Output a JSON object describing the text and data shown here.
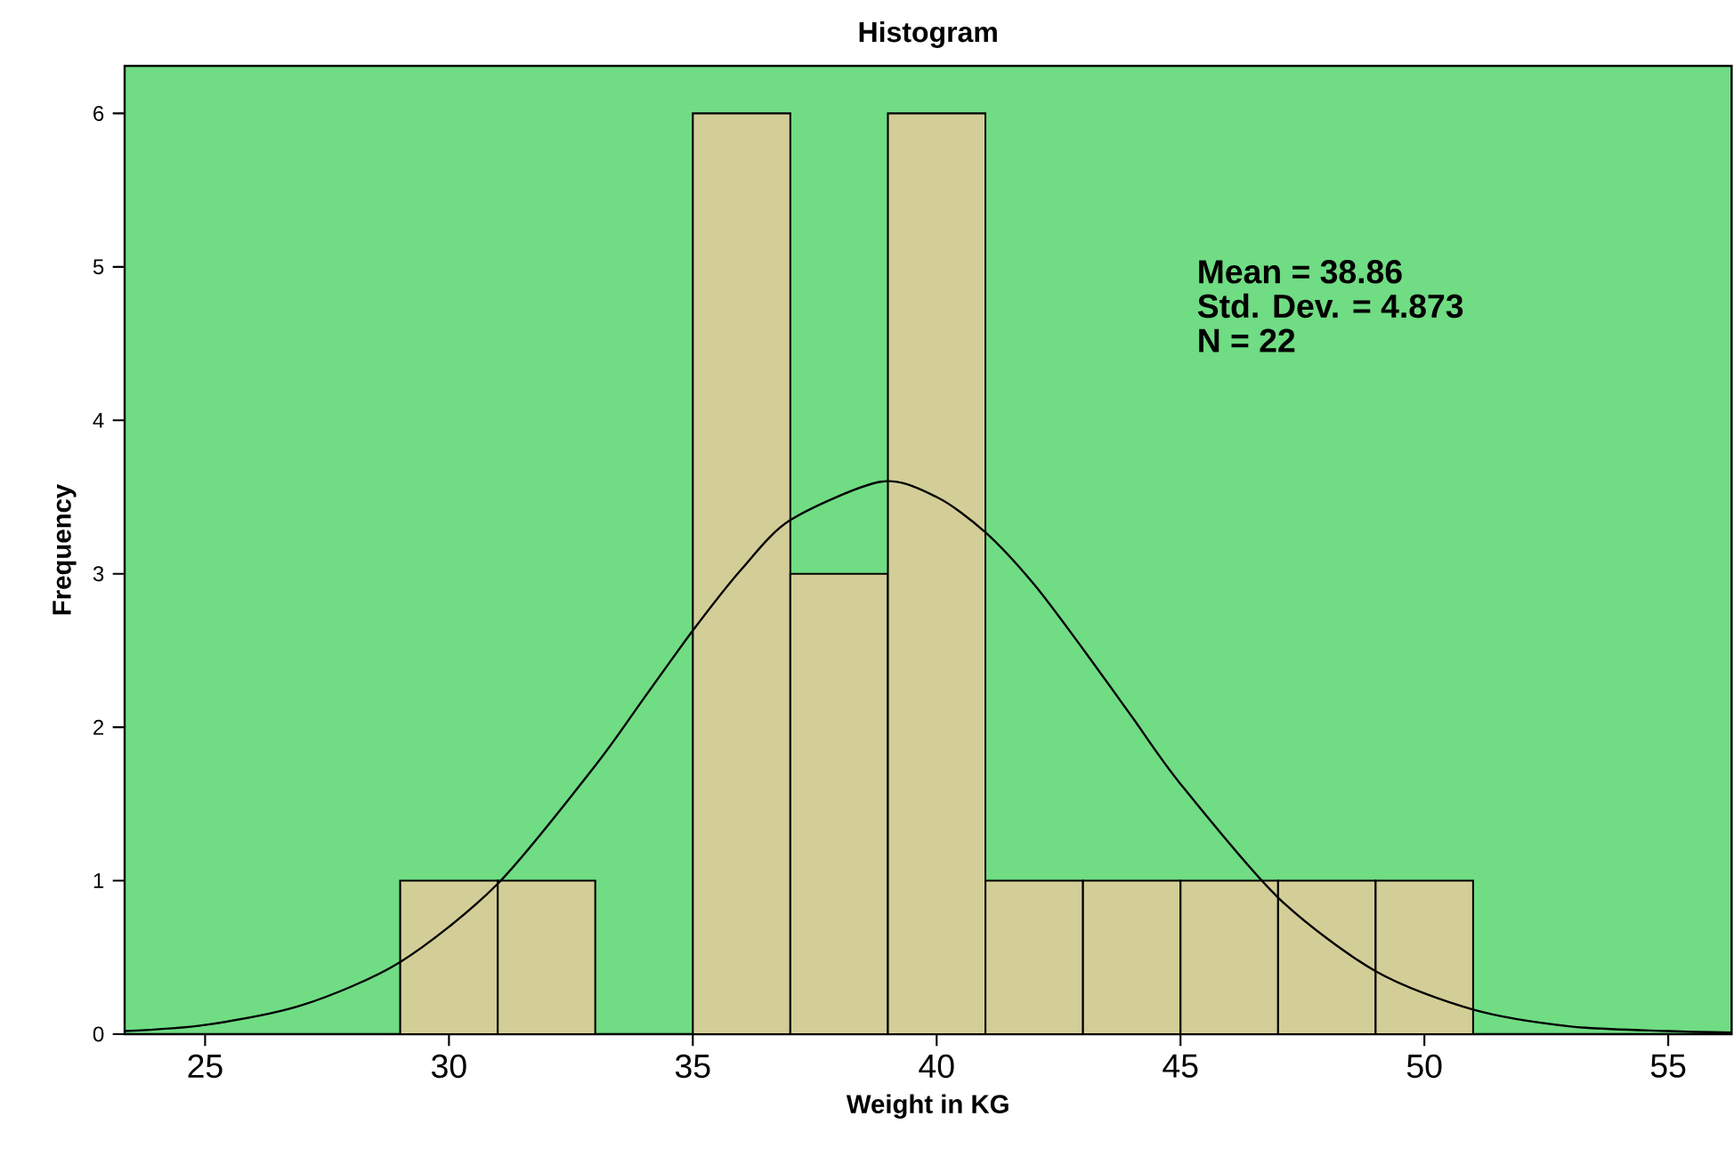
{
  "chart_data": {
    "type": "histogram",
    "title": "Histogram",
    "xlabel": "Weight in KG",
    "ylabel": "Frequency",
    "xlim": [
      23.35,
      56.3
    ],
    "ylim": [
      0,
      6.31
    ],
    "xticks": [
      25,
      30,
      35,
      40,
      45,
      50,
      55
    ],
    "yticks": [
      0,
      1,
      2,
      3,
      4,
      5,
      6
    ],
    "annotations": [
      "Mean = 38.86",
      "Std. Dev. = 4.873",
      "N = 22"
    ],
    "series": [
      {
        "color": "#d3ce97",
        "bins": [
          29,
          31,
          33,
          35,
          37,
          39,
          41,
          43,
          45,
          47,
          49,
          51
        ],
        "values": [
          1,
          1,
          0,
          6,
          3,
          6,
          1,
          1,
          1,
          1,
          1
        ]
      },
      {
        "type": "line",
        "color": "#000000",
        "x": [
          23.35,
          25,
          27,
          29,
          31,
          33,
          34,
          35,
          36,
          37,
          38.86,
          40,
          41,
          42,
          43,
          44,
          45,
          47,
          49,
          51,
          53,
          55,
          56.3
        ],
        "values": [
          0.02,
          0.06,
          0.19,
          0.47,
          0.98,
          1.75,
          2.19,
          2.63,
          3.03,
          3.35,
          3.6,
          3.5,
          3.27,
          2.93,
          2.51,
          2.07,
          1.63,
          0.89,
          0.41,
          0.16,
          0.05,
          0.02,
          0.01
        ]
      }
    ]
  }
}
